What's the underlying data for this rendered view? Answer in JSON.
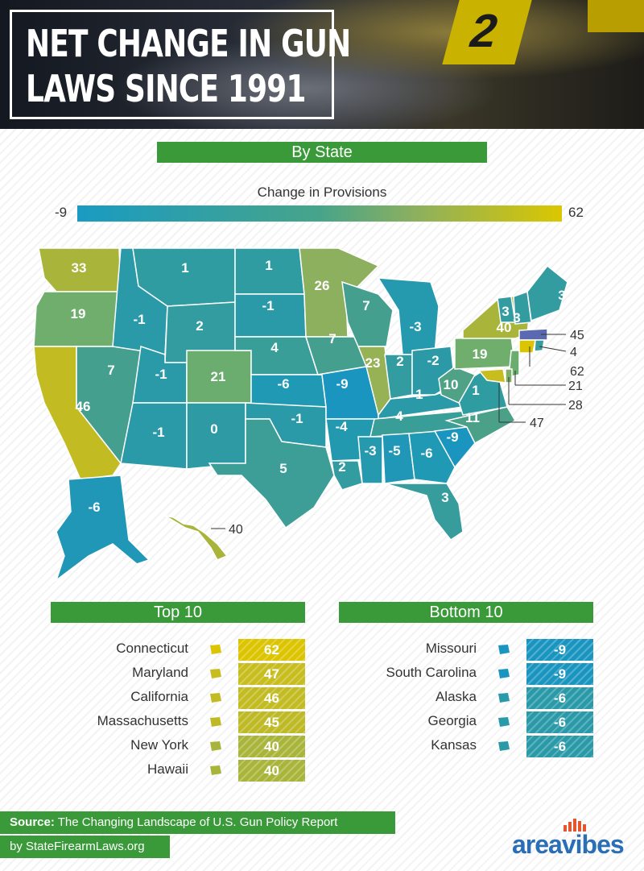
{
  "header": {
    "title_line1": "NET CHANGE IN GUN",
    "title_line2": "LAWS SINCE 1991",
    "marker_number": "2"
  },
  "by_state_label": "By State",
  "legend": {
    "title": "Change in Provisions",
    "min": "-9",
    "max": "62"
  },
  "map_states": [
    {
      "abbr": "WA",
      "value": "33"
    },
    {
      "abbr": "OR",
      "value": "19"
    },
    {
      "abbr": "CA",
      "value": "46"
    },
    {
      "abbr": "NV",
      "value": "7"
    },
    {
      "abbr": "ID",
      "value": "-1"
    },
    {
      "abbr": "MT",
      "value": "1"
    },
    {
      "abbr": "WY",
      "value": "2"
    },
    {
      "abbr": "UT",
      "value": "-1"
    },
    {
      "abbr": "AZ",
      "value": "-1"
    },
    {
      "abbr": "CO",
      "value": "21"
    },
    {
      "abbr": "NM",
      "value": "0"
    },
    {
      "abbr": "ND",
      "value": "1"
    },
    {
      "abbr": "SD",
      "value": "-1"
    },
    {
      "abbr": "NE",
      "value": "4"
    },
    {
      "abbr": "KS",
      "value": "-6"
    },
    {
      "abbr": "OK",
      "value": "-1"
    },
    {
      "abbr": "TX",
      "value": "5"
    },
    {
      "abbr": "MN",
      "value": "26"
    },
    {
      "abbr": "IA",
      "value": "7"
    },
    {
      "abbr": "MO",
      "value": "-9"
    },
    {
      "abbr": "AR",
      "value": "-4"
    },
    {
      "abbr": "LA",
      "value": "2"
    },
    {
      "abbr": "WI",
      "value": "7"
    },
    {
      "abbr": "IL",
      "value": "23"
    },
    {
      "abbr": "MI",
      "value": "-3"
    },
    {
      "abbr": "IN",
      "value": "2"
    },
    {
      "abbr": "OH",
      "value": "-2"
    },
    {
      "abbr": "KY",
      "value": "-1"
    },
    {
      "abbr": "TN",
      "value": "4"
    },
    {
      "abbr": "MS",
      "value": "-3"
    },
    {
      "abbr": "AL",
      "value": "-5"
    },
    {
      "abbr": "GA",
      "value": "-6"
    },
    {
      "abbr": "FL",
      "value": "3"
    },
    {
      "abbr": "SC",
      "value": "-9"
    },
    {
      "abbr": "NC",
      "value": "11"
    },
    {
      "abbr": "VA",
      "value": "1"
    },
    {
      "abbr": "WV",
      "value": "10"
    },
    {
      "abbr": "PA",
      "value": "19"
    },
    {
      "abbr": "NY",
      "value": "40"
    },
    {
      "abbr": "VT",
      "value": "3"
    },
    {
      "abbr": "NH",
      "value": "3"
    },
    {
      "abbr": "ME",
      "value": "3"
    },
    {
      "abbr": "AK",
      "value": "-6"
    }
  ],
  "callouts": [
    {
      "state": "MA",
      "value": "45"
    },
    {
      "state": "RI",
      "value": "4"
    },
    {
      "state": "CT",
      "value": "62"
    },
    {
      "state": "NJ",
      "value": "21"
    },
    {
      "state": "DE",
      "value": "28"
    },
    {
      "state": "MD",
      "value": "47"
    },
    {
      "state": "HI",
      "value": "40"
    }
  ],
  "top10": {
    "label": "Top 10",
    "rows": [
      {
        "name": "Connecticut",
        "value": "62",
        "color": "#dcc400",
        "icon": "connecticut-icon"
      },
      {
        "name": "Maryland",
        "value": "47",
        "color": "#c7bd1e",
        "icon": "maryland-icon"
      },
      {
        "name": "California",
        "value": "46",
        "color": "#c2bb22",
        "icon": "california-icon"
      },
      {
        "name": "Massachusetts",
        "value": "45",
        "color": "#bdba26",
        "icon": "massachusetts-icon"
      },
      {
        "name": "New York",
        "value": "40",
        "color": "#a9b53a",
        "icon": "new-york-icon"
      },
      {
        "name": "Hawaii",
        "value": "40",
        "color": "#a9b53a",
        "icon": "hawaii-icon"
      }
    ]
  },
  "bottom10": {
    "label": "Bottom 10",
    "rows": [
      {
        "name": "Missouri",
        "value": "-9",
        "color": "#1a95c0",
        "icon": "missouri-icon"
      },
      {
        "name": "South Carolina",
        "value": "-9",
        "color": "#1a95c0",
        "icon": "south-carolina-icon"
      },
      {
        "name": "Alaska",
        "value": "-6",
        "color": "#2a9aa8",
        "icon": "alaska-icon"
      },
      {
        "name": "Georgia",
        "value": "-6",
        "color": "#2a9aa8",
        "icon": "georgia-icon"
      },
      {
        "name": "Kansas",
        "value": "-6",
        "color": "#2a9aa8",
        "icon": "kansas-icon"
      }
    ]
  },
  "footer": {
    "source_label": "Source:",
    "source_text": "The Changing Landscape of U.S. Gun Policy  Report",
    "by_text": "by StateFirearmLaws.org",
    "brand": "areavibes"
  }
}
